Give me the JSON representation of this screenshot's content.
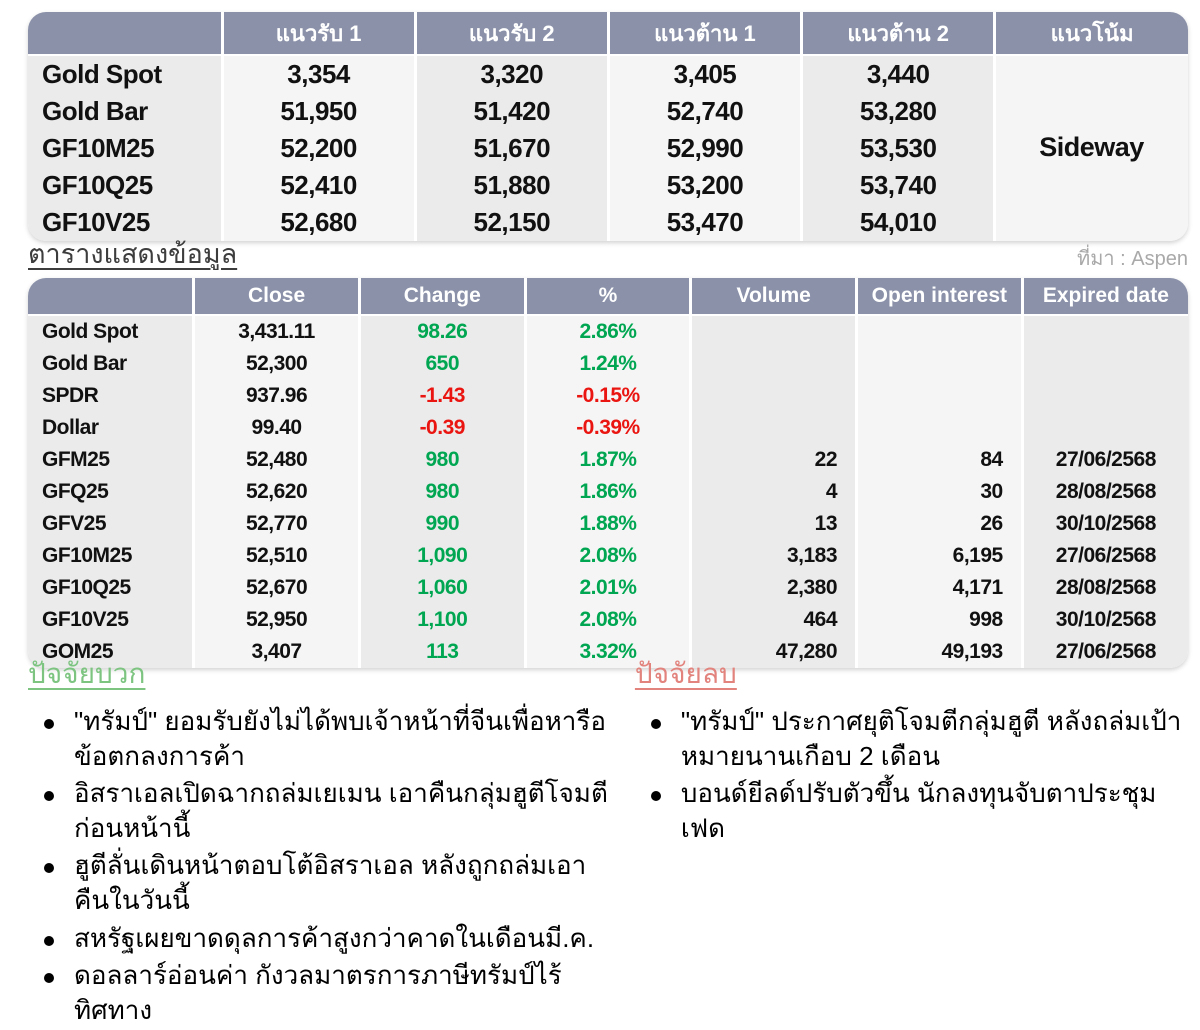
{
  "support_table": {
    "headers": [
      "",
      "แนวรับ 1",
      "แนวรับ 2",
      "แนวต้าน 1",
      "แนวต้าน 2",
      "แนวโน้ม"
    ],
    "rows": [
      {
        "name": "Gold Spot",
        "s1": "3,354",
        "s2": "3,320",
        "r1": "3,405",
        "r2": "3,440"
      },
      {
        "name": "Gold Bar",
        "s1": "51,950",
        "s2": "51,420",
        "r1": "52,740",
        "r2": "53,280"
      },
      {
        "name": "GF10M25",
        "s1": "52,200",
        "s2": "51,670",
        "r1": "52,990",
        "r2": "53,530"
      },
      {
        "name": "GF10Q25",
        "s1": "52,410",
        "s2": "51,880",
        "r1": "53,200",
        "r2": "53,740"
      },
      {
        "name": "GF10V25",
        "s1": "52,680",
        "s2": "52,150",
        "r1": "53,470",
        "r2": "54,010"
      }
    ],
    "trend": "Sideway"
  },
  "data_section": {
    "title": "ตารางแสดงข้อมูล",
    "source": "ที่มา : Aspen",
    "headers": [
      "",
      "Close",
      "Change",
      "%",
      "Volume",
      "Open interest",
      "Expired date"
    ],
    "rows": [
      {
        "name": "Gold Spot",
        "close": "3,431.11",
        "change": "98.26",
        "pct": "2.86%",
        "dir": "up",
        "volume": "",
        "oi": "",
        "expired": ""
      },
      {
        "name": "Gold Bar",
        "close": "52,300",
        "change": "650",
        "pct": "1.24%",
        "dir": "up",
        "volume": "",
        "oi": "",
        "expired": ""
      },
      {
        "name": "SPDR",
        "close": "937.96",
        "change": "-1.43",
        "pct": "-0.15%",
        "dir": "down",
        "volume": "",
        "oi": "",
        "expired": ""
      },
      {
        "name": "Dollar",
        "close": "99.40",
        "change": "-0.39",
        "pct": "-0.39%",
        "dir": "down",
        "volume": "",
        "oi": "",
        "expired": ""
      },
      {
        "name": "GFM25",
        "close": "52,480",
        "change": "980",
        "pct": "1.87%",
        "dir": "up",
        "volume": "22",
        "oi": "84",
        "expired": "27/06/2568"
      },
      {
        "name": "GFQ25",
        "close": "52,620",
        "change": "980",
        "pct": "1.86%",
        "dir": "up",
        "volume": "4",
        "oi": "30",
        "expired": "28/08/2568"
      },
      {
        "name": "GFV25",
        "close": "52,770",
        "change": "990",
        "pct": "1.88%",
        "dir": "up",
        "volume": "13",
        "oi": "26",
        "expired": "30/10/2568"
      },
      {
        "name": "GF10M25",
        "close": "52,510",
        "change": "1,090",
        "pct": "2.08%",
        "dir": "up",
        "volume": "3,183",
        "oi": "6,195",
        "expired": "27/06/2568"
      },
      {
        "name": "GF10Q25",
        "close": "52,670",
        "change": "1,060",
        "pct": "2.01%",
        "dir": "up",
        "volume": "2,380",
        "oi": "4,171",
        "expired": "28/08/2568"
      },
      {
        "name": "GF10V25",
        "close": "52,950",
        "change": "1,100",
        "pct": "2.08%",
        "dir": "up",
        "volume": "464",
        "oi": "998",
        "expired": "30/10/2568"
      },
      {
        "name": "GOM25",
        "close": "3,407",
        "change": "113",
        "pct": "3.32%",
        "dir": "up",
        "volume": "47,280",
        "oi": "49,193",
        "expired": "27/06/2568"
      }
    ]
  },
  "factors": {
    "positive": {
      "title": "ปัจจัยบวก",
      "items": [
        "\"ทรัมป์\" ยอมรับยังไม่ได้พบเจ้าหน้าที่จีนเพื่อหารือข้อตกลงการค้า",
        "อิสราเอลเปิดฉากถล่มเยเมน เอาคืนกลุ่มฮูตีโจมตีก่อนหน้านี้",
        "ฮูตีลั่นเดินหน้าตอบโต้อิสราเอล หลังถูกถล่มเอาคืนในวันนี้",
        "สหรัฐเผยขาดดุลการค้าสูงกว่าคาดในเดือนมี.ค.",
        "ดอลลาร์อ่อนค่า กังวลมาตรการภาษีทรัมป์ไร้ทิศทาง"
      ]
    },
    "negative": {
      "title": "ปัจจัยลบ",
      "items": [
        "\"ทรัมป์\" ประกาศยุติโจมตีกลุ่มฮูตี หลังถล่มเป้าหมายนานเกือบ 2 เดือน",
        "บอนด์ยีลด์ปรับตัวขึ้น นักลงทุนจับตาประชุมเฟด"
      ]
    }
  },
  "colors": {
    "header_bg": "#8A91A9",
    "up": "#00A651",
    "down": "#EA1510",
    "positive_title": "#7DC481",
    "negative_title": "#E2837D"
  }
}
